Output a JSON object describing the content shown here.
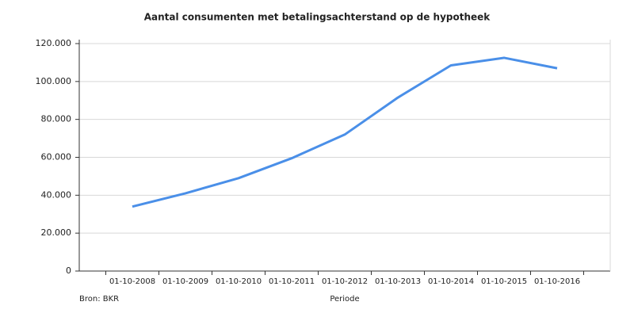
{
  "chart_data": {
    "type": "line",
    "title": "Aantal consumenten met betalingsachterstand op de hypotheek",
    "x_label": "Periode",
    "source": "Bron: BKR",
    "categories": [
      "01-10-2008",
      "01-10-2009",
      "01-10-2010",
      "01-10-2011",
      "01-10-2012",
      "01-10-2013",
      "01-10-2014",
      "01-10-2015",
      "01-10-2016"
    ],
    "values": [
      34000,
      41000,
      49000,
      59500,
      72000,
      91500,
      108500,
      112500,
      107000
    ],
    "color": "#4a8fe8",
    "ylim": [
      0,
      120000
    ],
    "yticks": [
      0,
      {
        "value": 20000,
        "label": "20.000"
      },
      {
        "value": 40000,
        "label": "40.000"
      },
      {
        "value": 60000,
        "label": "60.000"
      },
      {
        "value": 80000,
        "label": "80.000"
      },
      {
        "value": 100000,
        "label": "100.000"
      },
      {
        "value": 120000,
        "label": "120.000"
      }
    ],
    "grid": true
  }
}
